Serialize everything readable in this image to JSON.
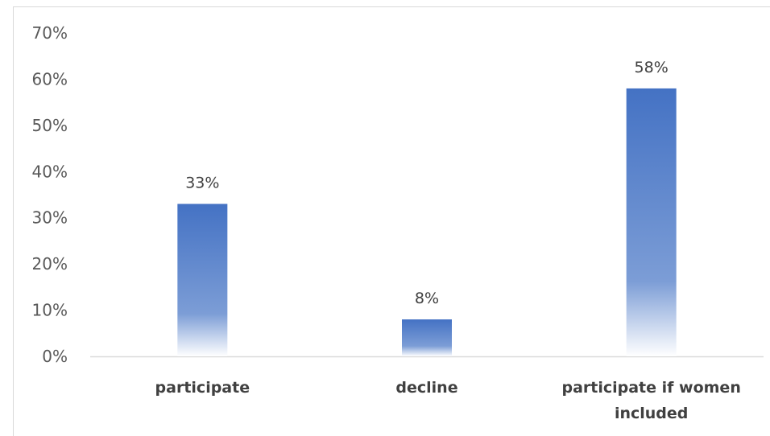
{
  "chart_data": {
    "type": "bar",
    "title": "",
    "xlabel": "",
    "ylabel": "",
    "categories": [
      "participate",
      "decline",
      "participate if women included"
    ],
    "category_lines": [
      [
        "participate"
      ],
      [
        "decline"
      ],
      [
        "participate if women",
        "included"
      ]
    ],
    "values": [
      33,
      8,
      58
    ],
    "data_labels": [
      "33%",
      "8%",
      "58%"
    ],
    "ylim": [
      0,
      70
    ],
    "y_ticks": [
      0,
      10,
      20,
      30,
      40,
      50,
      60,
      70
    ],
    "y_tick_labels": [
      "0%",
      "10%",
      "20%",
      "30%",
      "40%",
      "50%",
      "60%",
      "70%"
    ],
    "grid": false,
    "legend": "none",
    "colors": {
      "bar_top": "#4472c4",
      "bar_mid": "#7c9dd6",
      "bar_bottom": "#ffffff",
      "axis": "#d9d9d9"
    }
  }
}
